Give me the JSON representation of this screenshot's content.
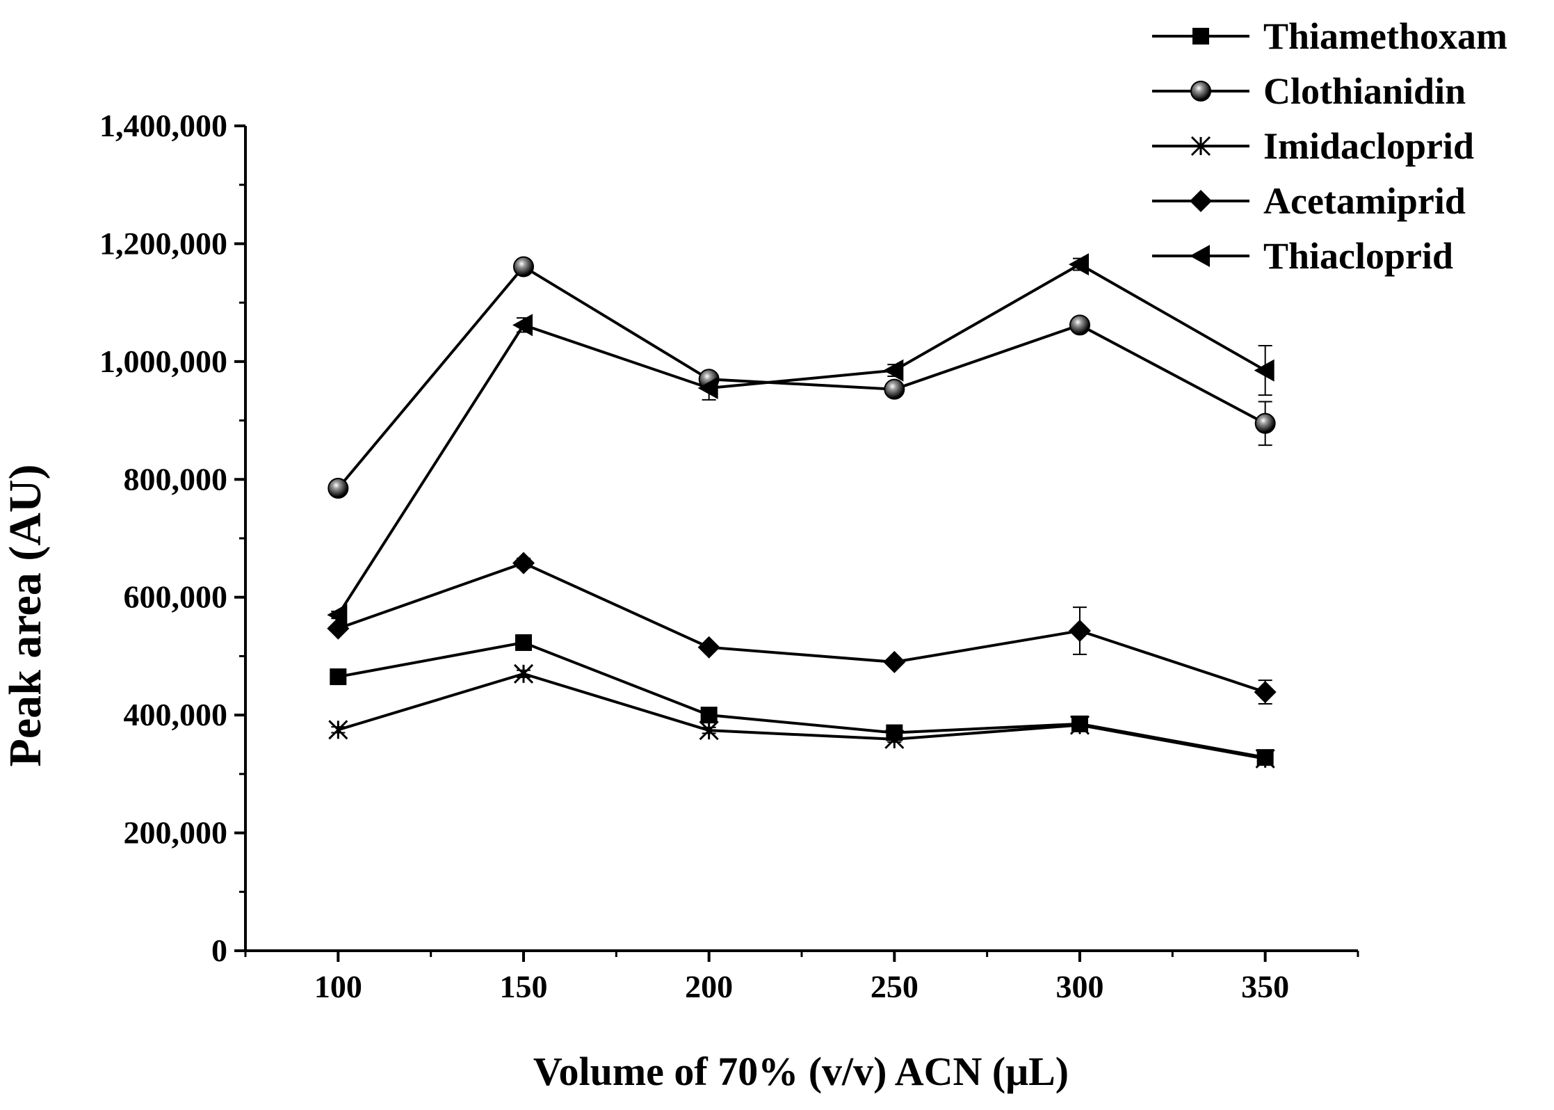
{
  "chart_data": {
    "type": "line",
    "title": "",
    "xlabel": "Volume of 70% (v/v) ACN (μL)",
    "ylabel": "Peak area (AU)",
    "x": [
      100,
      150,
      200,
      250,
      300,
      350
    ],
    "xlim": [
      75,
      375
    ],
    "ylim": [
      0,
      1400000
    ],
    "x_ticks": [
      100,
      150,
      200,
      250,
      300,
      350
    ],
    "x_tick_labels": [
      "100",
      "150",
      "200",
      "250",
      "300",
      "350"
    ],
    "y_ticks": [
      0,
      200000,
      400000,
      600000,
      800000,
      1000000,
      1200000,
      1400000
    ],
    "y_tick_labels": [
      "0",
      "200,000",
      "400,000",
      "600,000",
      "800,000",
      "1,000,000",
      "1,200,000",
      "1,400,000"
    ],
    "grid": false,
    "legend_position": "top-right",
    "series": [
      {
        "name": "Thiamethoxam",
        "marker": "square",
        "values": [
          465000,
          523000,
          400000,
          370000,
          385000,
          328000
        ],
        "errors": [
          5000,
          8000,
          6000,
          5000,
          8000,
          6000
        ]
      },
      {
        "name": "Clothianidin",
        "marker": "sphere",
        "values": [
          785000,
          1161000,
          970000,
          953000,
          1062000,
          895000
        ],
        "errors": [
          6000,
          10000,
          8000,
          6000,
          6000,
          37000
        ]
      },
      {
        "name": "Imidacloprid",
        "marker": "star",
        "values": [
          375000,
          470000,
          374000,
          359000,
          383000,
          326000
        ],
        "errors": [
          5000,
          6000,
          5000,
          5000,
          6000,
          5000
        ]
      },
      {
        "name": "Acetamiprid",
        "marker": "diamond",
        "values": [
          547000,
          658000,
          515000,
          490000,
          543000,
          439000
        ],
        "errors": [
          5000,
          8000,
          5000,
          5000,
          40000,
          20000
        ]
      },
      {
        "name": "Thiacloprid",
        "marker": "triangle-left",
        "values": [
          570000,
          1062000,
          955000,
          985000,
          1165000,
          985000
        ],
        "errors": [
          6000,
          12000,
          20000,
          10000,
          10000,
          42000
        ]
      }
    ]
  }
}
